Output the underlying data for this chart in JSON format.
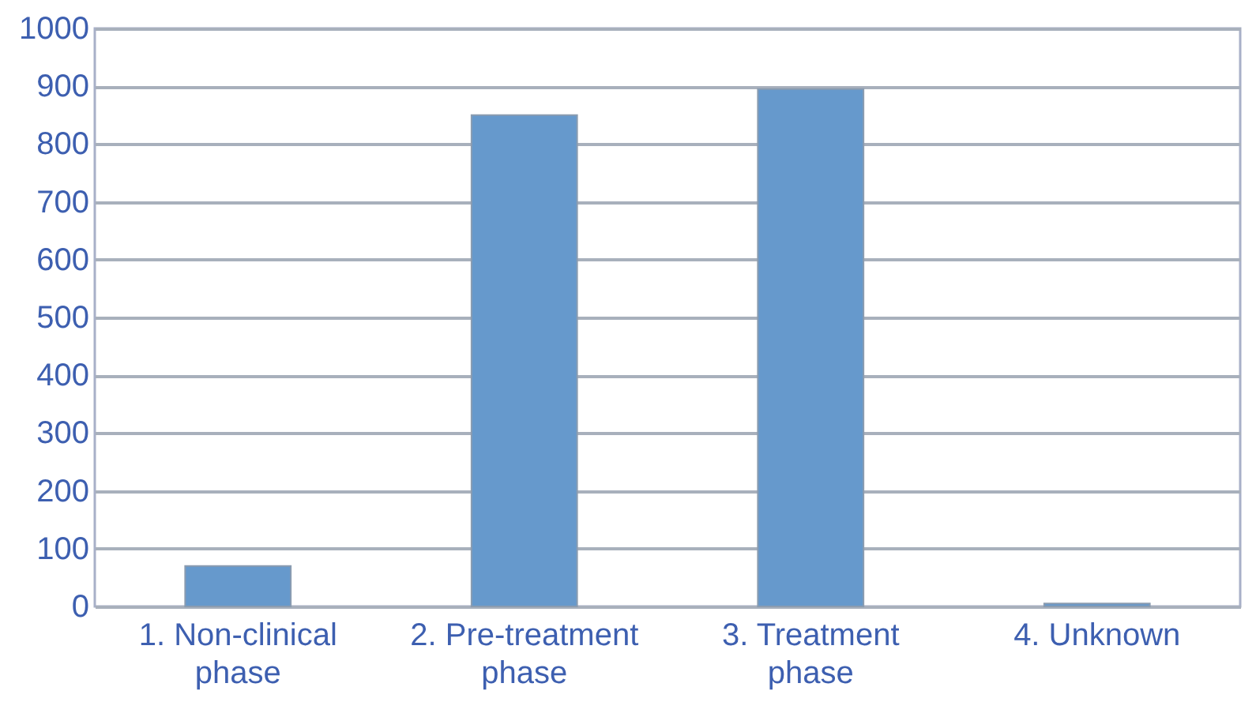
{
  "chart_data": {
    "type": "bar",
    "categories": [
      "1. Non-clinical phase",
      "2. Pre-treatment phase",
      "3. Treatment phase",
      "4. Unknown"
    ],
    "values": [
      70,
      850,
      895,
      5
    ],
    "color": "#6699cc",
    "ylim": [
      0,
      1000
    ],
    "yticks": [
      0,
      100,
      200,
      300,
      400,
      500,
      600,
      700,
      800,
      900,
      1000
    ],
    "grid": "y"
  }
}
